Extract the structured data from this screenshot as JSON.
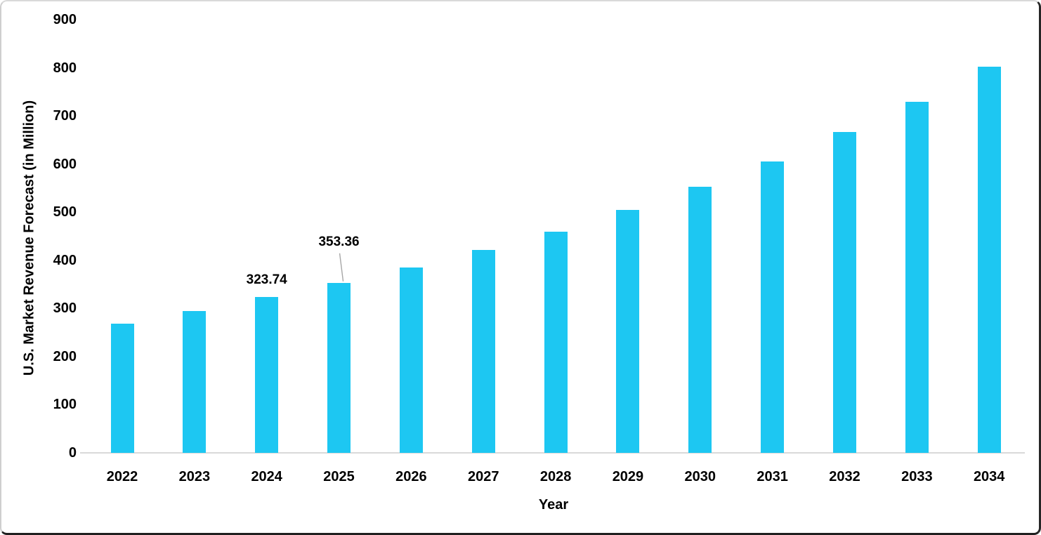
{
  "chart_data": {
    "type": "bar",
    "categories": [
      "2022",
      "2023",
      "2024",
      "2025",
      "2026",
      "2027",
      "2028",
      "2029",
      "2030",
      "2031",
      "2032",
      "2033",
      "2034"
    ],
    "values": [
      268,
      295,
      323.74,
      353.36,
      385,
      421,
      460,
      504,
      553,
      605,
      666,
      730,
      803
    ],
    "title": "",
    "xlabel": "Year",
    "ylabel": "U.S. Market Revenue Forecast (in Million)",
    "ylim": [
      0,
      900
    ],
    "ytick_step": 100,
    "ytick_labels": [
      "0",
      "100",
      "200",
      "300",
      "400",
      "500",
      "600",
      "700",
      "800",
      "900"
    ],
    "grid": false,
    "legend": false,
    "data_labels": [
      {
        "category": "2024",
        "text": "323.74",
        "leader": false
      },
      {
        "category": "2025",
        "text": "353.36",
        "leader": true
      }
    ]
  },
  "colors": {
    "bar": "#1dc7f2",
    "axis_line": "#d9d9d9",
    "leader_line": "#a6a6a6",
    "text": "#000000",
    "background": "#ffffff"
  }
}
